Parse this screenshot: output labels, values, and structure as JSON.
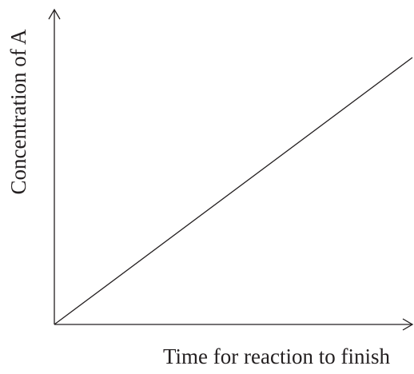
{
  "chart_data": {
    "type": "line",
    "x_label": "Time for reaction to finish",
    "y_label": "Concentration of A"
  }
}
